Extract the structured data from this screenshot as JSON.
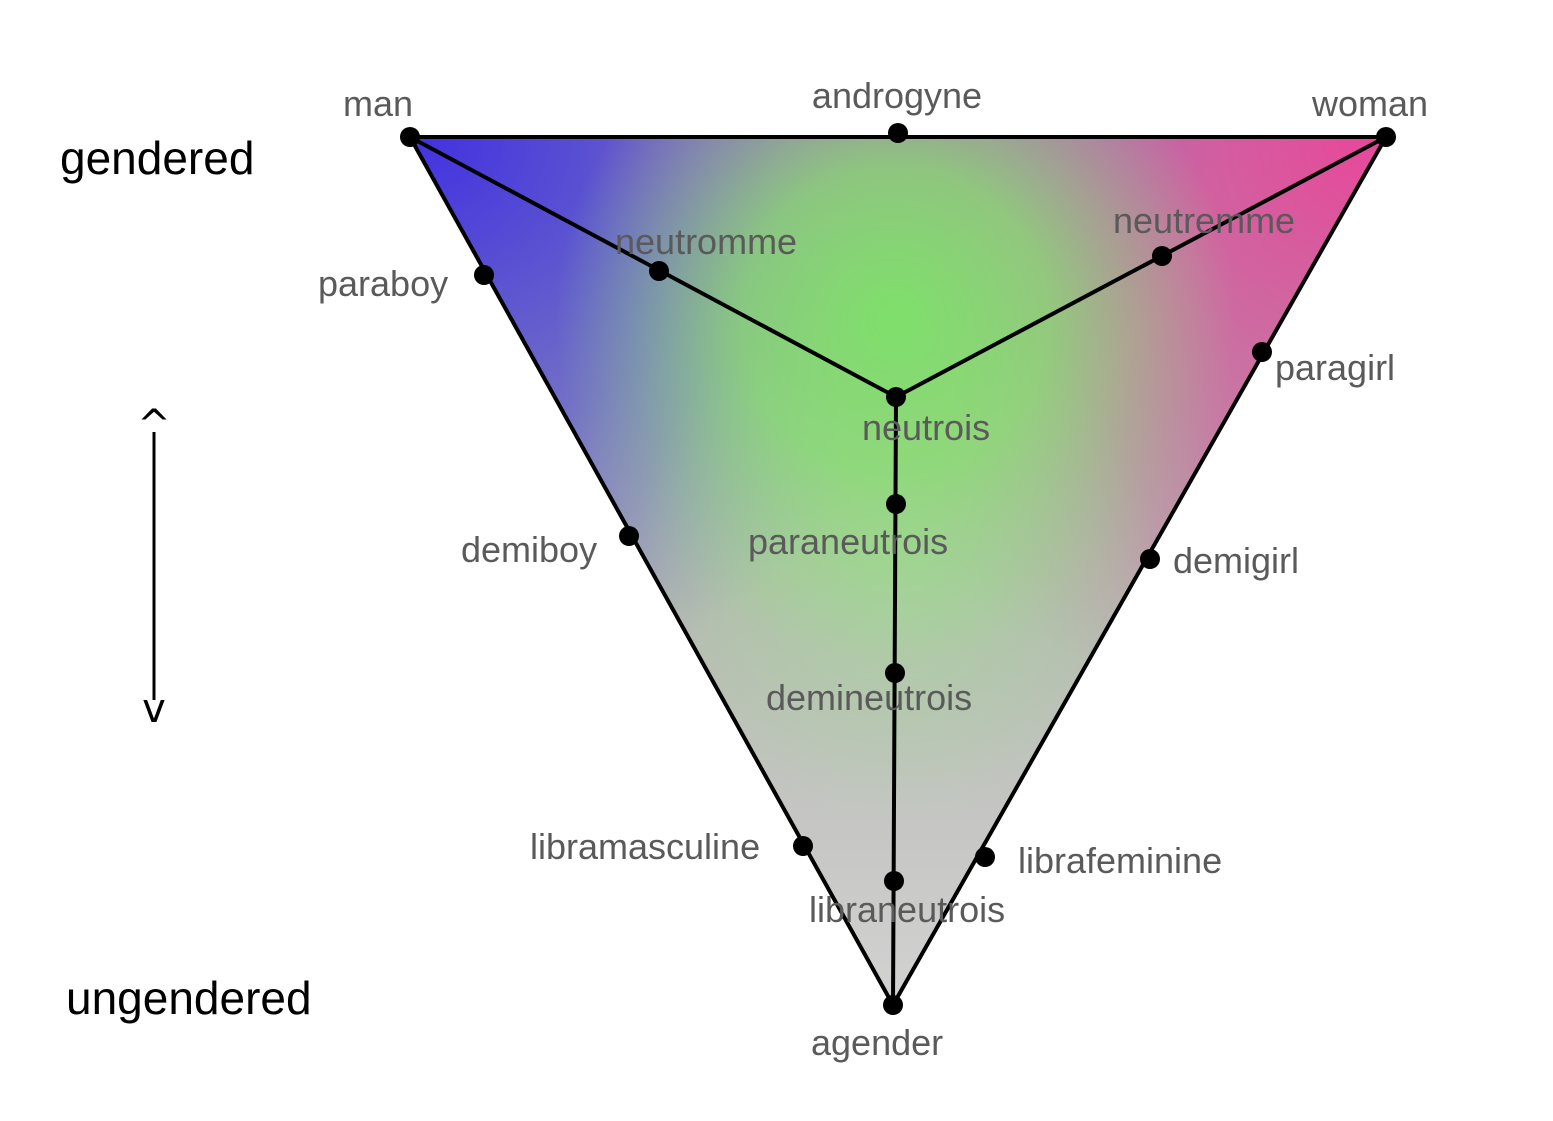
{
  "axis": {
    "top_label": "gendered",
    "bottom_label": "ungendered",
    "arrow_up_glyph": "^",
    "arrow_down_glyph": "v"
  },
  "colors": {
    "man": "#4433e0",
    "woman": "#e8489a",
    "neutrois": "#7ee06a",
    "agender": "#d2d2d2",
    "edge": "#000000",
    "label": "#5a5a5a"
  },
  "nodes": [
    {
      "id": "man",
      "label": "man"
    },
    {
      "id": "androgyne",
      "label": "androgyne"
    },
    {
      "id": "woman",
      "label": "woman"
    },
    {
      "id": "neutromme",
      "label": "neutromme"
    },
    {
      "id": "neutremme",
      "label": "neutremme"
    },
    {
      "id": "paraboy",
      "label": "paraboy"
    },
    {
      "id": "paragirl",
      "label": "paragirl"
    },
    {
      "id": "neutrois",
      "label": "neutrois"
    },
    {
      "id": "paraneutrois",
      "label": "paraneutrois"
    },
    {
      "id": "demiboy",
      "label": "demiboy"
    },
    {
      "id": "demigirl",
      "label": "demigirl"
    },
    {
      "id": "demineutrois",
      "label": "demineutrois"
    },
    {
      "id": "libramasculine",
      "label": "libramasculine"
    },
    {
      "id": "librafeminine",
      "label": "librafeminine"
    },
    {
      "id": "libraneutrois",
      "label": "libraneutrois"
    },
    {
      "id": "agender",
      "label": "agender"
    }
  ]
}
